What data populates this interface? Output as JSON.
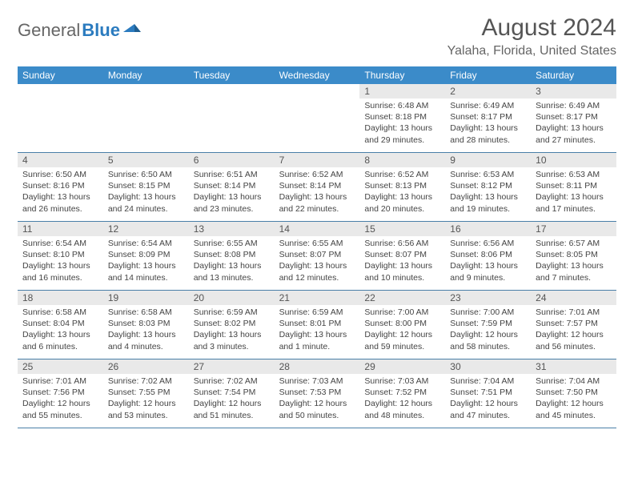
{
  "logo": {
    "general": "General",
    "blue": "Blue"
  },
  "title": "August 2024",
  "location": "Yalaha, Florida, United States",
  "weekdays": [
    "Sunday",
    "Monday",
    "Tuesday",
    "Wednesday",
    "Thursday",
    "Friday",
    "Saturday"
  ],
  "colors": {
    "header_bg": "#3b8bc9",
    "daynum_bg": "#e9e9e9",
    "cell_border": "#4a7fa8",
    "logo_blue": "#2b7bbf",
    "text": "#444444"
  },
  "days": [
    {
      "n": "",
      "sunrise": "",
      "sunset": "",
      "daylight": ""
    },
    {
      "n": "",
      "sunrise": "",
      "sunset": "",
      "daylight": ""
    },
    {
      "n": "",
      "sunrise": "",
      "sunset": "",
      "daylight": ""
    },
    {
      "n": "",
      "sunrise": "",
      "sunset": "",
      "daylight": ""
    },
    {
      "n": "1",
      "sunrise": "Sunrise: 6:48 AM",
      "sunset": "Sunset: 8:18 PM",
      "daylight": "Daylight: 13 hours and 29 minutes."
    },
    {
      "n": "2",
      "sunrise": "Sunrise: 6:49 AM",
      "sunset": "Sunset: 8:17 PM",
      "daylight": "Daylight: 13 hours and 28 minutes."
    },
    {
      "n": "3",
      "sunrise": "Sunrise: 6:49 AM",
      "sunset": "Sunset: 8:17 PM",
      "daylight": "Daylight: 13 hours and 27 minutes."
    },
    {
      "n": "4",
      "sunrise": "Sunrise: 6:50 AM",
      "sunset": "Sunset: 8:16 PM",
      "daylight": "Daylight: 13 hours and 26 minutes."
    },
    {
      "n": "5",
      "sunrise": "Sunrise: 6:50 AM",
      "sunset": "Sunset: 8:15 PM",
      "daylight": "Daylight: 13 hours and 24 minutes."
    },
    {
      "n": "6",
      "sunrise": "Sunrise: 6:51 AM",
      "sunset": "Sunset: 8:14 PM",
      "daylight": "Daylight: 13 hours and 23 minutes."
    },
    {
      "n": "7",
      "sunrise": "Sunrise: 6:52 AM",
      "sunset": "Sunset: 8:14 PM",
      "daylight": "Daylight: 13 hours and 22 minutes."
    },
    {
      "n": "8",
      "sunrise": "Sunrise: 6:52 AM",
      "sunset": "Sunset: 8:13 PM",
      "daylight": "Daylight: 13 hours and 20 minutes."
    },
    {
      "n": "9",
      "sunrise": "Sunrise: 6:53 AM",
      "sunset": "Sunset: 8:12 PM",
      "daylight": "Daylight: 13 hours and 19 minutes."
    },
    {
      "n": "10",
      "sunrise": "Sunrise: 6:53 AM",
      "sunset": "Sunset: 8:11 PM",
      "daylight": "Daylight: 13 hours and 17 minutes."
    },
    {
      "n": "11",
      "sunrise": "Sunrise: 6:54 AM",
      "sunset": "Sunset: 8:10 PM",
      "daylight": "Daylight: 13 hours and 16 minutes."
    },
    {
      "n": "12",
      "sunrise": "Sunrise: 6:54 AM",
      "sunset": "Sunset: 8:09 PM",
      "daylight": "Daylight: 13 hours and 14 minutes."
    },
    {
      "n": "13",
      "sunrise": "Sunrise: 6:55 AM",
      "sunset": "Sunset: 8:08 PM",
      "daylight": "Daylight: 13 hours and 13 minutes."
    },
    {
      "n": "14",
      "sunrise": "Sunrise: 6:55 AM",
      "sunset": "Sunset: 8:07 PM",
      "daylight": "Daylight: 13 hours and 12 minutes."
    },
    {
      "n": "15",
      "sunrise": "Sunrise: 6:56 AM",
      "sunset": "Sunset: 8:07 PM",
      "daylight": "Daylight: 13 hours and 10 minutes."
    },
    {
      "n": "16",
      "sunrise": "Sunrise: 6:56 AM",
      "sunset": "Sunset: 8:06 PM",
      "daylight": "Daylight: 13 hours and 9 minutes."
    },
    {
      "n": "17",
      "sunrise": "Sunrise: 6:57 AM",
      "sunset": "Sunset: 8:05 PM",
      "daylight": "Daylight: 13 hours and 7 minutes."
    },
    {
      "n": "18",
      "sunrise": "Sunrise: 6:58 AM",
      "sunset": "Sunset: 8:04 PM",
      "daylight": "Daylight: 13 hours and 6 minutes."
    },
    {
      "n": "19",
      "sunrise": "Sunrise: 6:58 AM",
      "sunset": "Sunset: 8:03 PM",
      "daylight": "Daylight: 13 hours and 4 minutes."
    },
    {
      "n": "20",
      "sunrise": "Sunrise: 6:59 AM",
      "sunset": "Sunset: 8:02 PM",
      "daylight": "Daylight: 13 hours and 3 minutes."
    },
    {
      "n": "21",
      "sunrise": "Sunrise: 6:59 AM",
      "sunset": "Sunset: 8:01 PM",
      "daylight": "Daylight: 13 hours and 1 minute."
    },
    {
      "n": "22",
      "sunrise": "Sunrise: 7:00 AM",
      "sunset": "Sunset: 8:00 PM",
      "daylight": "Daylight: 12 hours and 59 minutes."
    },
    {
      "n": "23",
      "sunrise": "Sunrise: 7:00 AM",
      "sunset": "Sunset: 7:59 PM",
      "daylight": "Daylight: 12 hours and 58 minutes."
    },
    {
      "n": "24",
      "sunrise": "Sunrise: 7:01 AM",
      "sunset": "Sunset: 7:57 PM",
      "daylight": "Daylight: 12 hours and 56 minutes."
    },
    {
      "n": "25",
      "sunrise": "Sunrise: 7:01 AM",
      "sunset": "Sunset: 7:56 PM",
      "daylight": "Daylight: 12 hours and 55 minutes."
    },
    {
      "n": "26",
      "sunrise": "Sunrise: 7:02 AM",
      "sunset": "Sunset: 7:55 PM",
      "daylight": "Daylight: 12 hours and 53 minutes."
    },
    {
      "n": "27",
      "sunrise": "Sunrise: 7:02 AM",
      "sunset": "Sunset: 7:54 PM",
      "daylight": "Daylight: 12 hours and 51 minutes."
    },
    {
      "n": "28",
      "sunrise": "Sunrise: 7:03 AM",
      "sunset": "Sunset: 7:53 PM",
      "daylight": "Daylight: 12 hours and 50 minutes."
    },
    {
      "n": "29",
      "sunrise": "Sunrise: 7:03 AM",
      "sunset": "Sunset: 7:52 PM",
      "daylight": "Daylight: 12 hours and 48 minutes."
    },
    {
      "n": "30",
      "sunrise": "Sunrise: 7:04 AM",
      "sunset": "Sunset: 7:51 PM",
      "daylight": "Daylight: 12 hours and 47 minutes."
    },
    {
      "n": "31",
      "sunrise": "Sunrise: 7:04 AM",
      "sunset": "Sunset: 7:50 PM",
      "daylight": "Daylight: 12 hours and 45 minutes."
    }
  ]
}
